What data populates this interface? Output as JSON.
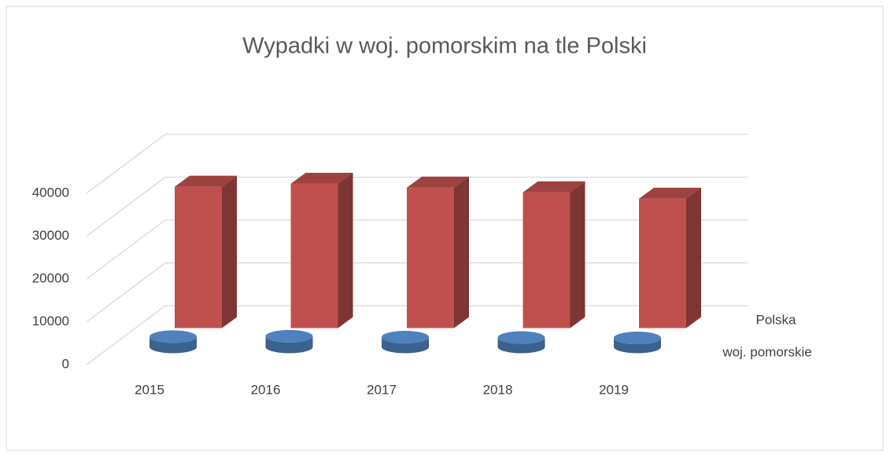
{
  "chart_data": {
    "type": "bar3d",
    "title": "Wypadki w woj. pomorskim na tle Polski",
    "categories": [
      "2015",
      "2016",
      "2017",
      "2018",
      "2019"
    ],
    "series": [
      {
        "name": "woj. pomorskie",
        "color": "#4f81bd",
        "values": [
          2400,
          2500,
          2300,
          2200,
          2100
        ]
      },
      {
        "name": "Polska",
        "color": "#c0504d",
        "values": [
          33000,
          33700,
          32800,
          31700,
          30200
        ]
      }
    ],
    "ylim": [
      0,
      40000
    ],
    "yticks": [
      0,
      10000,
      20000,
      30000,
      40000
    ],
    "grid": true
  }
}
